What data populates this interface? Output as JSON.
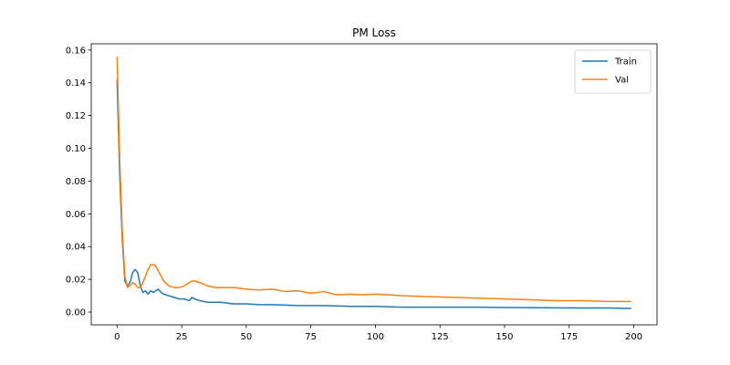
{
  "chart_data": {
    "type": "line",
    "title": "PM Loss",
    "xlabel": "",
    "ylabel": "",
    "xlim": [
      -10,
      209
    ],
    "ylim": [
      -0.0078,
      0.1638
    ],
    "xticks": [
      0,
      25,
      50,
      75,
      100,
      125,
      150,
      175,
      200
    ],
    "yticks": [
      0.0,
      0.02,
      0.04,
      0.06,
      0.08,
      0.1,
      0.12,
      0.14,
      0.16
    ],
    "ytick_labels": [
      "0.00",
      "0.02",
      "0.04",
      "0.06",
      "0.08",
      "0.10",
      "0.12",
      "0.14",
      "0.16"
    ],
    "grid": false,
    "legend_position": "top-right",
    "series": [
      {
        "name": "Train",
        "color": "#1f77b4",
        "points": [
          [
            0,
            0.142
          ],
          [
            1,
            0.085
          ],
          [
            2,
            0.045
          ],
          [
            3,
            0.019
          ],
          [
            4,
            0.016
          ],
          [
            5,
            0.018
          ],
          [
            6,
            0.024
          ],
          [
            7,
            0.026
          ],
          [
            8,
            0.024
          ],
          [
            9,
            0.016
          ],
          [
            10,
            0.012
          ],
          [
            11,
            0.013
          ],
          [
            12,
            0.011
          ],
          [
            13,
            0.013
          ],
          [
            14,
            0.012
          ],
          [
            15,
            0.013
          ],
          [
            16,
            0.014
          ],
          [
            17,
            0.012
          ],
          [
            18,
            0.011
          ],
          [
            20,
            0.01
          ],
          [
            22,
            0.009
          ],
          [
            24,
            0.008
          ],
          [
            26,
            0.008
          ],
          [
            28,
            0.007
          ],
          [
            29,
            0.009
          ],
          [
            30,
            0.008
          ],
          [
            32,
            0.007
          ],
          [
            35,
            0.006
          ],
          [
            40,
            0.006
          ],
          [
            45,
            0.005
          ],
          [
            50,
            0.005
          ],
          [
            55,
            0.0045
          ],
          [
            60,
            0.0045
          ],
          [
            70,
            0.004
          ],
          [
            80,
            0.004
          ],
          [
            90,
            0.0035
          ],
          [
            100,
            0.0035
          ],
          [
            110,
            0.003
          ],
          [
            120,
            0.003
          ],
          [
            130,
            0.003
          ],
          [
            140,
            0.003
          ],
          [
            150,
            0.0028
          ],
          [
            160,
            0.0027
          ],
          [
            170,
            0.0026
          ],
          [
            180,
            0.0025
          ],
          [
            190,
            0.0025
          ],
          [
            199,
            0.0022
          ]
        ]
      },
      {
        "name": "Val",
        "color": "#ff7f0e",
        "points": [
          [
            0,
            0.156
          ],
          [
            1,
            0.095
          ],
          [
            2,
            0.05
          ],
          [
            3,
            0.022
          ],
          [
            4,
            0.015
          ],
          [
            5,
            0.016
          ],
          [
            6,
            0.018
          ],
          [
            7,
            0.017
          ],
          [
            8,
            0.015
          ],
          [
            9,
            0.015
          ],
          [
            10,
            0.018
          ],
          [
            11,
            0.022
          ],
          [
            12,
            0.026
          ],
          [
            13,
            0.029
          ],
          [
            14,
            0.029
          ],
          [
            15,
            0.028
          ],
          [
            16,
            0.025
          ],
          [
            17,
            0.022
          ],
          [
            18,
            0.019
          ],
          [
            20,
            0.016
          ],
          [
            22,
            0.015
          ],
          [
            24,
            0.015
          ],
          [
            26,
            0.016
          ],
          [
            28,
            0.018
          ],
          [
            29,
            0.019
          ],
          [
            30,
            0.019
          ],
          [
            32,
            0.018
          ],
          [
            35,
            0.016
          ],
          [
            38,
            0.015
          ],
          [
            40,
            0.015
          ],
          [
            45,
            0.015
          ],
          [
            50,
            0.014
          ],
          [
            55,
            0.0135
          ],
          [
            60,
            0.014
          ],
          [
            65,
            0.0125
          ],
          [
            70,
            0.013
          ],
          [
            75,
            0.0115
          ],
          [
            80,
            0.0125
          ],
          [
            85,
            0.0105
          ],
          [
            90,
            0.011
          ],
          [
            95,
            0.0105
          ],
          [
            100,
            0.011
          ],
          [
            110,
            0.01
          ],
          [
            120,
            0.0095
          ],
          [
            130,
            0.009
          ],
          [
            140,
            0.0085
          ],
          [
            150,
            0.008
          ],
          [
            160,
            0.0075
          ],
          [
            170,
            0.007
          ],
          [
            180,
            0.007
          ],
          [
            190,
            0.0065
          ],
          [
            199,
            0.0065
          ]
        ]
      }
    ]
  }
}
